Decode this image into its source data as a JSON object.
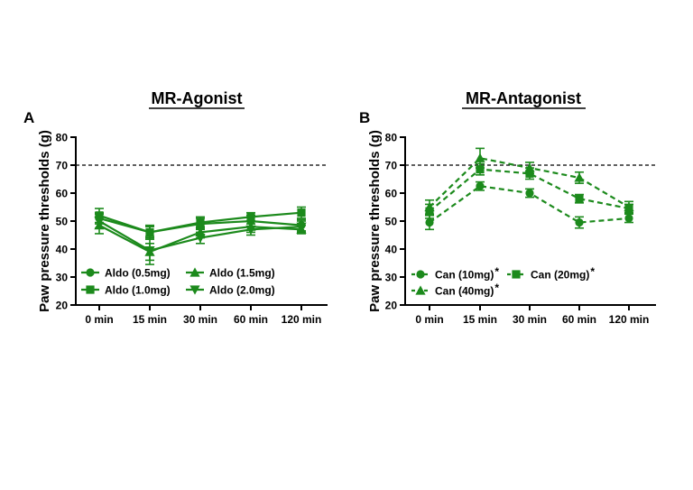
{
  "colors": {
    "series": "#1c8a1c",
    "reference": "#000000",
    "axis": "#000000"
  },
  "chart_data": [
    {
      "panel_letter": "A",
      "title": "MR-Agonist",
      "type": "line",
      "ylabel": "Paw pressure thresholds (g)",
      "xlabel": "",
      "ylim": [
        20,
        80
      ],
      "yticks": [
        20,
        30,
        40,
        50,
        60,
        70,
        80
      ],
      "categories": [
        "0 min",
        "15 min",
        "30 min",
        "60 min",
        "120 min"
      ],
      "reference_line": 70,
      "line_style": "solid",
      "grid": false,
      "legend_placement": "bottom-inside",
      "series": [
        {
          "name": "Aldo (0.5mg)",
          "marker": "circle",
          "values": [
            51,
            46,
            49,
            50,
            48.5
          ],
          "errors": [
            2,
            2,
            2,
            2,
            2
          ]
        },
        {
          "name": "Aldo (1.0mg)",
          "marker": "square",
          "values": [
            52,
            46,
            49.5,
            51.5,
            53
          ],
          "errors": [
            2.5,
            2.5,
            2,
            1.5,
            2
          ]
        },
        {
          "name": "Aldo (1.5mg)",
          "marker": "triangle-up",
          "values": [
            48.5,
            39,
            46,
            48,
            47
          ],
          "errors": [
            3,
            3,
            2,
            2,
            1.5
          ]
        },
        {
          "name": "Aldo (2.0mg)",
          "marker": "triangle-down",
          "values": [
            50,
            39.5,
            44,
            47,
            48
          ],
          "errors": [
            2.5,
            5,
            2,
            2,
            2
          ]
        }
      ]
    },
    {
      "panel_letter": "B",
      "title": "MR-Antagonist",
      "type": "line",
      "ylabel": "Paw pressure thresholds (g)",
      "xlabel": "",
      "ylim": [
        20,
        80
      ],
      "yticks": [
        20,
        30,
        40,
        50,
        60,
        70,
        80
      ],
      "categories": [
        "0 min",
        "15 min",
        "30 min",
        "60 min",
        "120 min"
      ],
      "reference_line": 70,
      "line_style": "dashed",
      "grid": false,
      "legend_placement": "bottom-inside",
      "series": [
        {
          "name": "Can (10mg)",
          "marker": "circle",
          "significance": "*",
          "values": [
            49.5,
            62.5,
            60,
            49.5,
            51
          ],
          "errors": [
            2.5,
            1.5,
            1.5,
            2,
            1.5
          ]
        },
        {
          "name": "Can (20mg)",
          "marker": "square",
          "significance": "*",
          "values": [
            53.5,
            68.5,
            67,
            58,
            54.5
          ],
          "errors": [
            2.5,
            2,
            2,
            1.5,
            1.5
          ]
        },
        {
          "name": "Can (40mg)",
          "marker": "triangle-up",
          "significance": "*",
          "values": [
            55,
            72.5,
            69,
            65.5,
            55
          ],
          "errors": [
            2.5,
            3.5,
            2,
            2,
            2
          ]
        }
      ]
    }
  ]
}
